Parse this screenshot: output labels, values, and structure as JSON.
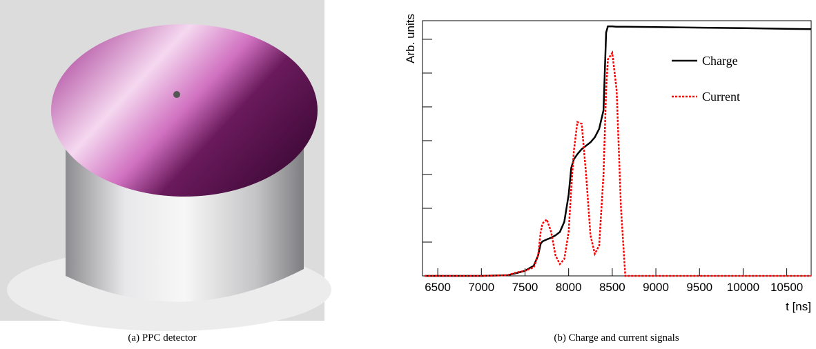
{
  "photo": {
    "caption": "(a) PPC detector"
  },
  "chart_data": {
    "type": "line",
    "caption": "(b) Charge and current signals",
    "xlabel": "t [ns]",
    "ylabel": "Arb. units",
    "x": [
      6350,
      7000,
      7300,
      7400,
      7500,
      7600,
      7650,
      7680,
      7700,
      7750,
      7800,
      7850,
      7900,
      7950,
      8000,
      8030,
      8060,
      8100,
      8150,
      8200,
      8250,
      8300,
      8350,
      8400,
      8430,
      8450,
      8500,
      8550,
      8600,
      8650,
      9000,
      10000,
      10780
    ],
    "series": [
      {
        "name": "Charge",
        "color": "#000000",
        "dash": "solid",
        "values": [
          0,
          0,
          0.02,
          0.08,
          0.15,
          0.3,
          0.6,
          0.95,
          1.02,
          1.08,
          1.13,
          1.2,
          1.3,
          1.6,
          2.4,
          3.2,
          3.45,
          3.6,
          3.75,
          3.85,
          3.95,
          4.1,
          4.35,
          4.9,
          7.2,
          7.38,
          7.38,
          7.37,
          7.37,
          7.37,
          7.36,
          7.33,
          7.3
        ]
      },
      {
        "name": "Current",
        "color": "#ff0000",
        "dash": "dotted",
        "values": [
          0,
          0,
          0.02,
          0.1,
          0.15,
          0.25,
          0.6,
          1.3,
          1.55,
          1.67,
          1.3,
          0.6,
          0.35,
          0.5,
          1.3,
          2.6,
          3.7,
          4.55,
          4.5,
          3.0,
          1.2,
          0.65,
          0.9,
          3.0,
          5.5,
          6.4,
          6.6,
          5.5,
          2.0,
          0,
          0,
          0,
          0
        ]
      }
    ],
    "xlim": [
      6325,
      10780
    ],
    "xticks": [
      6500,
      7000,
      7500,
      8000,
      8500,
      9000,
      9500,
      10000,
      10500
    ],
    "ylim": [
      0,
      7.55
    ],
    "yticks": [
      0,
      1,
      2,
      3,
      4,
      5,
      6,
      7
    ],
    "legend": "upper right"
  }
}
